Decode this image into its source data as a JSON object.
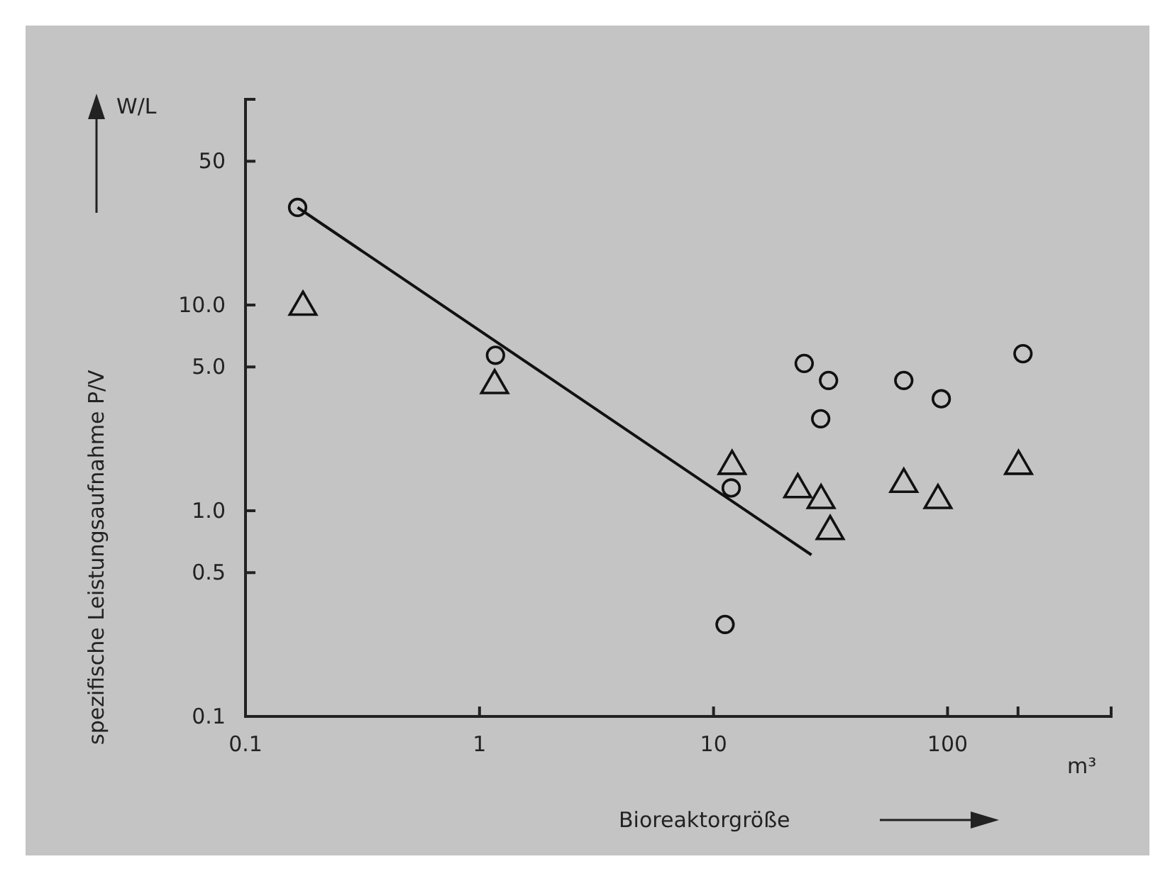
{
  "chart_data": {
    "type": "scatter",
    "xlabel": "Bioreaktorgröße",
    "ylabel": "spezifische Leistungsaufnahme P/V",
    "annotations": [
      "W/L",
      "m³"
    ],
    "log": "xy",
    "grid": false,
    "xlim": [
      0.1,
      500
    ],
    "xticks": [
      {
        "value": 0.1,
        "label": "0.1"
      },
      1,
      10,
      100,
      {
        "value": 200,
        "label": null
      }
    ],
    "ylim": [
      0.1,
      100
    ],
    "yticks": [
      {
        "value": 0.1,
        "label": "0.1"
      },
      {
        "value": 0.5,
        "label": "0.5"
      },
      {
        "value": 1,
        "label": "1.0"
      },
      {
        "value": 5,
        "label": "5.0"
      },
      {
        "value": 10,
        "label": "10.0"
      },
      50
    ],
    "series": [
      {
        "marker": "circle",
        "color": "#111111",
        "x": [
          0.167,
          1.17,
          11.9,
          11.2,
          24.4,
          31,
          28.7,
          65,
          94,
          210
        ],
        "values": [
          29.8,
          5.7,
          1.29,
          0.28,
          5.2,
          4.3,
          2.8,
          4.3,
          3.5,
          5.8
        ]
      },
      {
        "marker": "triangle",
        "color": "#111111",
        "x": [
          0.176,
          1.16,
          12,
          22.9,
          28.8,
          31.5,
          65,
          91,
          201
        ],
        "values": [
          10.1,
          4.2,
          1.7,
          1.31,
          1.16,
          0.82,
          1.39,
          1.16,
          1.7
        ]
      },
      {
        "type": "line",
        "color": "#111111",
        "x": [
          0.167,
          26.2
        ],
        "values": [
          29.8,
          0.61
        ]
      }
    ]
  }
}
